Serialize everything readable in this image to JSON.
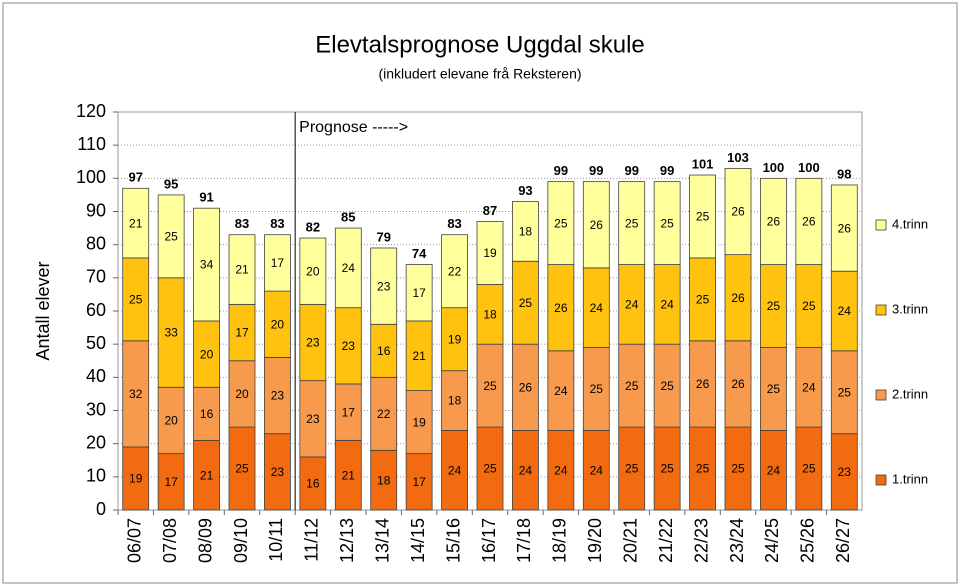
{
  "chart_data": {
    "type": "stacked_bar",
    "title": "Elevtalsprognose Uggdal skule",
    "subtitle": "(inkludert elevane frå Reksteren)",
    "ylabel": "Antall elever",
    "annotation": "Prognose ----->",
    "categories": [
      "06/07",
      "07/08",
      "08/09",
      "09/10",
      "10/11",
      "11/12",
      "12/13",
      "13/14",
      "14/15",
      "15/16",
      "16/17",
      "17/18",
      "18/19",
      "19/20",
      "20/21",
      "21/22",
      "22/23",
      "23/24",
      "24/25",
      "25/26",
      "26/27"
    ],
    "series": [
      {
        "name": "1.trinn",
        "color": "#f26b10",
        "values": [
          19,
          17,
          21,
          25,
          23,
          16,
          21,
          18,
          17,
          24,
          25,
          24,
          24,
          24,
          25,
          25,
          25,
          25,
          24,
          25,
          23
        ]
      },
      {
        "name": "2.trinn",
        "color": "#f79a4d",
        "values": [
          32,
          20,
          16,
          20,
          23,
          23,
          17,
          22,
          19,
          18,
          25,
          26,
          24,
          25,
          25,
          25,
          26,
          26,
          25,
          24,
          25
        ]
      },
      {
        "name": "3.trinn",
        "color": "#ffc20e",
        "values": [
          25,
          33,
          20,
          17,
          20,
          23,
          23,
          16,
          21,
          19,
          18,
          25,
          26,
          24,
          24,
          24,
          25,
          26,
          25,
          25,
          24
        ]
      },
      {
        "name": "4.trinn",
        "color": "#ffff9c",
        "values": [
          21,
          25,
          34,
          21,
          17,
          20,
          24,
          23,
          17,
          22,
          19,
          18,
          25,
          26,
          25,
          25,
          25,
          26,
          26,
          26,
          26
        ]
      }
    ],
    "totals": [
      97,
      95,
      91,
      83,
      83,
      82,
      85,
      79,
      74,
      83,
      87,
      93,
      99,
      99,
      99,
      99,
      101,
      103,
      100,
      100,
      98
    ],
    "ylim": [
      0,
      120
    ],
    "yticks": [
      0,
      10,
      20,
      30,
      40,
      50,
      60,
      70,
      80,
      90,
      100,
      110,
      120
    ],
    "grid": true
  }
}
